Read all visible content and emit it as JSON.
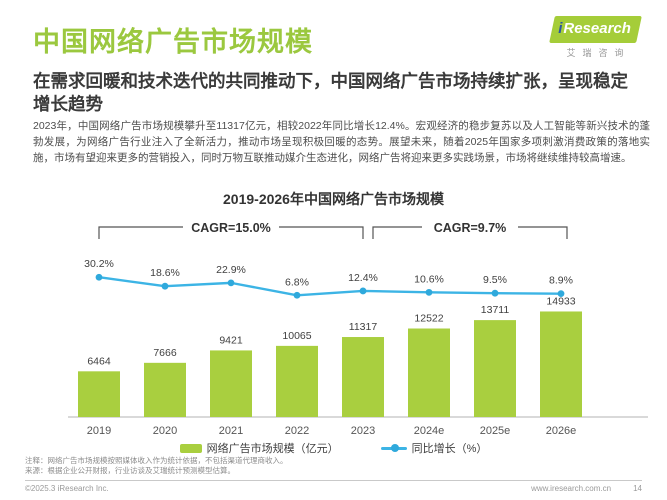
{
  "page": {
    "title": "中国网络广告市场规模",
    "subtitle": "在需求回暖和技术迭代的共同推动下，中国网络广告市场持续扩张，呈现稳定增长趋势",
    "body": "2023年，中国网络广告市场规模攀升至11317亿元，相较2022年同比增长12.4%。宏观经济的稳步复苏以及人工智能等新兴技术的蓬勃发展，为网络广告行业注入了全新活力，推动市场呈现积极回暖的态势。展望未来，随着2025年国家多项刺激消费政策的落地实施，市场有望迎来更多的营销投入，同时万物互联推动媒介生态进化，网络广告将迎来更多实践场景，市场将继续维持较高增速。"
  },
  "logo": {
    "i": "i",
    "research": "Research",
    "cn": "艾瑞咨询"
  },
  "chart_data": {
    "type": "bar",
    "title": "2019-2026年中国网络广告市场规模",
    "categories": [
      "2019",
      "2020",
      "2021",
      "2022",
      "2023",
      "2024e",
      "2025e",
      "2026e"
    ],
    "series": [
      {
        "name": "网络广告市场规模（亿元）",
        "type": "bar",
        "values": [
          6464,
          7666,
          9421,
          10065,
          11317,
          12522,
          13711,
          14933
        ],
        "color": "#A9CF3F"
      },
      {
        "name": "同比增长（%）",
        "type": "line",
        "values": [
          30.2,
          18.6,
          22.9,
          6.8,
          12.4,
          10.6,
          9.5,
          8.9
        ],
        "unit": "%",
        "color": "#3CB4E5"
      }
    ],
    "annotations": [
      {
        "label": "CAGR=15.0%",
        "from": 0,
        "to": 4
      },
      {
        "label": "CAGR=9.7%",
        "from": 4,
        "to": 7
      }
    ],
    "ylim_bar": [
      0,
      15000
    ],
    "grid": false,
    "legend_position": "bottom"
  },
  "notes": [
    "注释：网络广告市场规模按照媒体收入作为统计依据，不包括渠道代理商收入。",
    "来源：根据企业公开财报，行业访谈及艾瑞统计预测模型估算。"
  ],
  "footer": {
    "copyright": "©2025.3 iResearch Inc.",
    "website": "www.iresearch.com.cn",
    "page_number": "14"
  },
  "colors": {
    "title_green": "#9BC83F",
    "bar_green": "#A9CF3F",
    "line_cyan": "#3CB4E5",
    "logo_green": "#A5CD39",
    "logo_blue": "#2B55A2",
    "dark_text": "#333333"
  }
}
